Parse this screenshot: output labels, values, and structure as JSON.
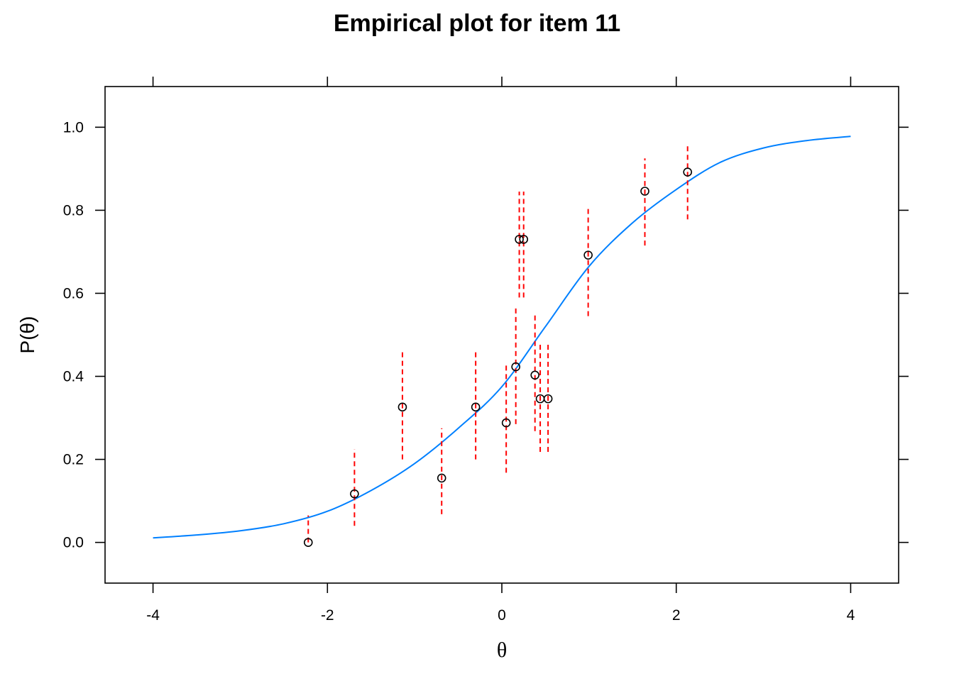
{
  "chart_data": {
    "type": "scatter",
    "title": "Empirical plot for item 11",
    "xlabel": "θ",
    "ylabel": "P(θ)",
    "xlim": [
      -4.55,
      4.55
    ],
    "ylim": [
      -0.098,
      1.098
    ],
    "x_ticks": [
      -4,
      -2,
      0,
      2,
      4
    ],
    "x_tick_labels": [
      "-4",
      "-2",
      "0",
      "2",
      "4"
    ],
    "y_ticks": [
      0.0,
      0.2,
      0.4,
      0.6,
      0.8,
      1.0
    ],
    "y_tick_labels": [
      "0.0",
      "0.2",
      "0.4",
      "0.6",
      "0.8",
      "1.0"
    ],
    "grid": false,
    "legend": "none",
    "colors": {
      "points": "#000000",
      "error_bars": "#ff0000",
      "curve": "#0080ff"
    },
    "series": [
      {
        "kind": "points_with_error_bars",
        "points": [
          {
            "x": -2.22,
            "y": 0.0,
            "lo": 0.0,
            "hi": 0.065
          },
          {
            "x": -1.69,
            "y": 0.117,
            "lo": 0.04,
            "hi": 0.225
          },
          {
            "x": -1.14,
            "y": 0.326,
            "lo": 0.2,
            "hi": 0.465
          },
          {
            "x": -0.69,
            "y": 0.155,
            "lo": 0.068,
            "hi": 0.275
          },
          {
            "x": -0.3,
            "y": 0.326,
            "lo": 0.2,
            "hi": 0.465
          },
          {
            "x": 0.05,
            "y": 0.288,
            "lo": 0.168,
            "hi": 0.43
          },
          {
            "x": 0.16,
            "y": 0.423,
            "lo": 0.285,
            "hi": 0.565
          },
          {
            "x": 0.2,
            "y": 0.73,
            "lo": 0.59,
            "hi": 0.845
          },
          {
            "x": 0.25,
            "y": 0.73,
            "lo": 0.59,
            "hi": 0.845
          },
          {
            "x": 0.38,
            "y": 0.403,
            "lo": 0.268,
            "hi": 0.548
          },
          {
            "x": 0.44,
            "y": 0.346,
            "lo": 0.218,
            "hi": 0.48
          },
          {
            "x": 0.53,
            "y": 0.346,
            "lo": 0.218,
            "hi": 0.48
          },
          {
            "x": 0.99,
            "y": 0.692,
            "lo": 0.545,
            "hi": 0.81
          },
          {
            "x": 1.64,
            "y": 0.846,
            "lo": 0.715,
            "hi": 0.925
          },
          {
            "x": 2.13,
            "y": 0.892,
            "lo": 0.778,
            "hi": 0.96
          }
        ]
      },
      {
        "kind": "curve",
        "x": [
          -4.0,
          -3.5,
          -3.0,
          -2.5,
          -2.0,
          -1.5,
          -1.0,
          -0.5,
          0.0,
          0.5,
          1.0,
          1.5,
          2.0,
          2.5,
          3.0,
          3.5,
          4.0
        ],
        "y": [
          0.011,
          0.018,
          0.028,
          0.045,
          0.075,
          0.125,
          0.19,
          0.275,
          0.375,
          0.52,
          0.665,
          0.77,
          0.85,
          0.915,
          0.95,
          0.968,
          0.978
        ]
      }
    ]
  }
}
